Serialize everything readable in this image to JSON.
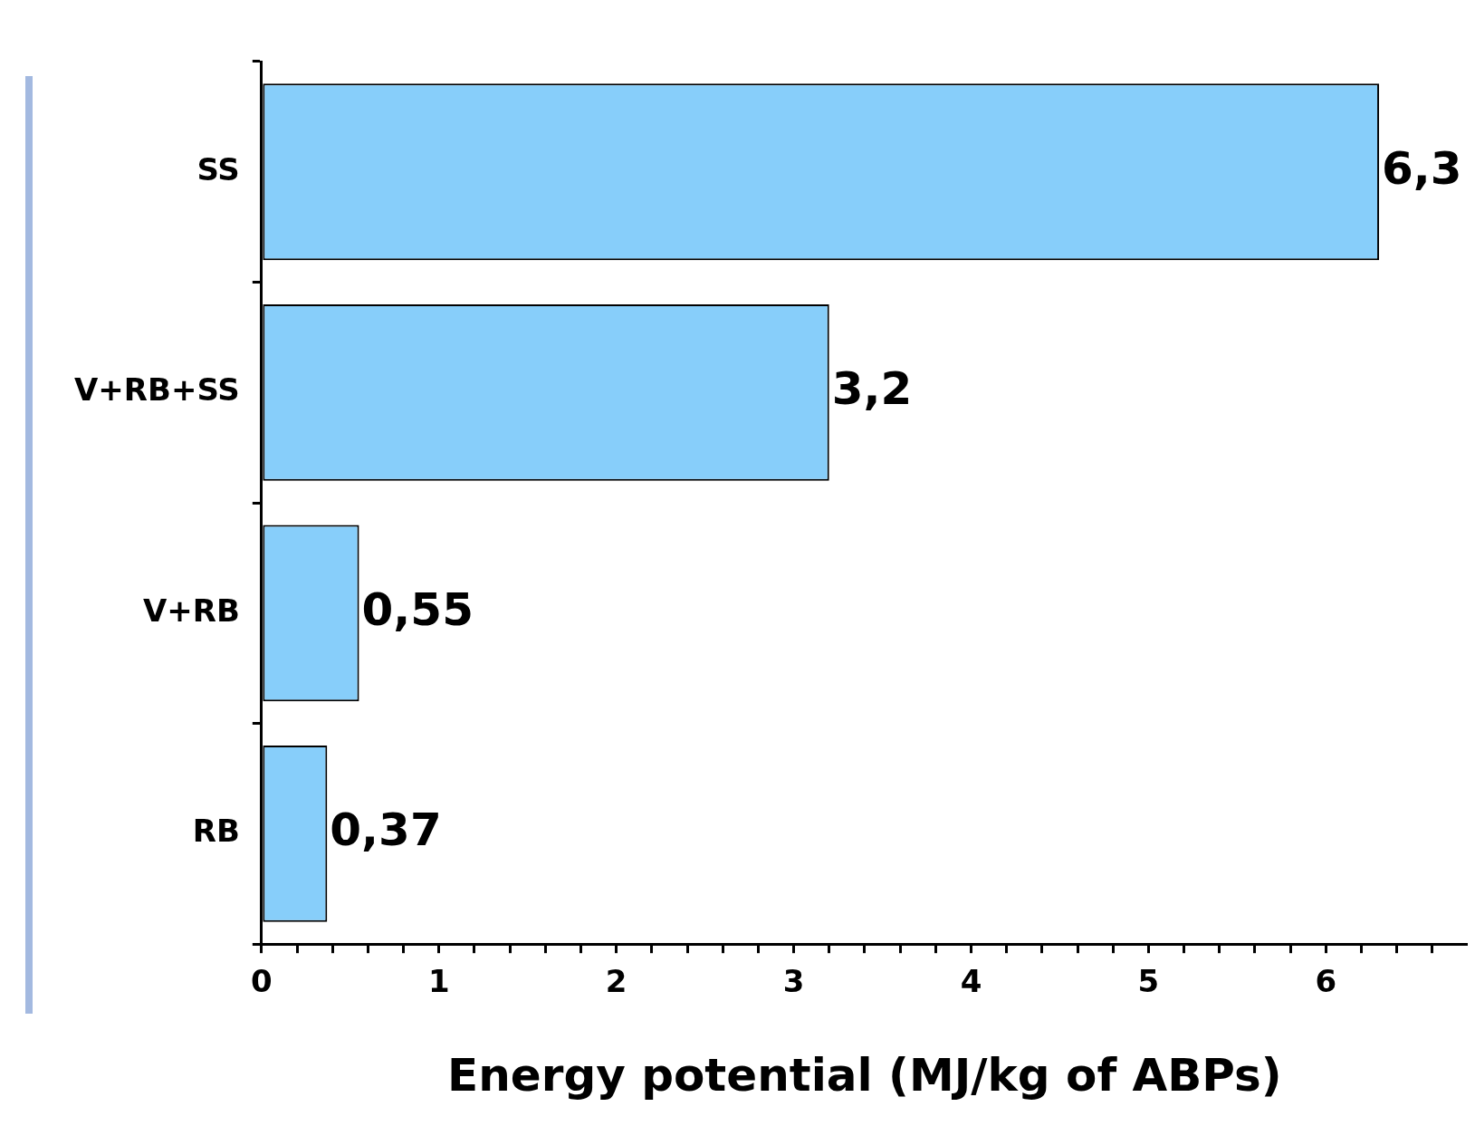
{
  "chart_data": {
    "type": "bar",
    "orientation": "horizontal",
    "xlabel": "Energy potential (MJ/kg of ABPs)",
    "categories": [
      "SS",
      "V+RB+SS",
      "V+RB",
      "RB"
    ],
    "values": [
      6.3,
      3.2,
      0.55,
      0.37
    ],
    "value_labels": [
      "6,3",
      "3,2",
      "0,55",
      "0,37"
    ],
    "color": "#87cefa",
    "xlim": [
      0,
      6.8
    ],
    "xticks": [
      0,
      {
        "value": 0.2,
        "label": null
      },
      {
        "value": 0.4,
        "label": null
      },
      {
        "value": 0.6,
        "label": null
      },
      {
        "value": 0.8,
        "label": null
      },
      1,
      {
        "value": 1.2,
        "label": null
      },
      {
        "value": 1.4,
        "label": null
      },
      {
        "value": 1.6,
        "label": null
      },
      {
        "value": 1.8,
        "label": null
      },
      2,
      {
        "value": 2.2,
        "label": null
      },
      {
        "value": 2.4,
        "label": null
      },
      {
        "value": 2.6,
        "label": null
      },
      {
        "value": 2.8,
        "label": null
      },
      3,
      {
        "value": 3.2,
        "label": null
      },
      {
        "value": 3.4,
        "label": null
      },
      {
        "value": 3.6,
        "label": null
      },
      {
        "value": 3.8,
        "label": null
      },
      4,
      {
        "value": 4.2,
        "label": null
      },
      {
        "value": 4.4,
        "label": null
      },
      {
        "value": 4.6,
        "label": null
      },
      {
        "value": 4.8,
        "label": null
      },
      5,
      {
        "value": 5.2,
        "label": null
      },
      {
        "value": 5.4,
        "label": null
      },
      {
        "value": 5.6,
        "label": null
      },
      {
        "value": 5.8,
        "label": null
      },
      6,
      {
        "value": 6.2,
        "label": null
      },
      {
        "value": 6.4,
        "label": null
      },
      {
        "value": 6.6,
        "label": null
      }
    ],
    "grid": false,
    "legend": false
  }
}
